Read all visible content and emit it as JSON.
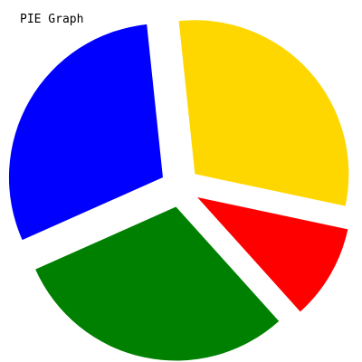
{
  "chart_data": {
    "type": "pie",
    "title": "PIE Graph",
    "exploded": true,
    "slices": [
      {
        "value": 30,
        "color": "#FFD700"
      },
      {
        "value": 10,
        "color": "#FF0000"
      },
      {
        "value": 30,
        "color": "#008000"
      },
      {
        "value": 30,
        "color": "#0000FF"
      }
    ]
  }
}
